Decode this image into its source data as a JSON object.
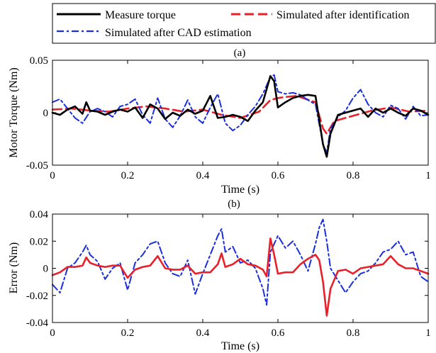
{
  "legend": {
    "entries": [
      {
        "label": "Measure torque",
        "color": "#000000",
        "style": "solid"
      },
      {
        "label": "Simulated after identification",
        "color": "#e8202a",
        "style": "dashed"
      },
      {
        "label": "Simulated after CAD estimation",
        "color": "#1a2ee0",
        "style": "dashdot"
      }
    ]
  },
  "chart_data": [
    {
      "type": "line",
      "panel_label": "(a)",
      "xlabel": "Time (s)",
      "ylabel": "Motor Torque (Nm)",
      "xlim": [
        0,
        1
      ],
      "ylim": [
        -0.05,
        0.05
      ],
      "xticks": [
        0,
        0.2,
        0.4,
        0.6,
        0.8,
        1
      ],
      "xtick_labels": [
        "0",
        "0.2",
        "0.4",
        "0.6",
        "0.8",
        "1"
      ],
      "yticks": [
        -0.05,
        0,
        0.05
      ],
      "ytick_labels": [
        "-0.05",
        "0",
        "0.05"
      ],
      "grid": false,
      "series": [
        {
          "name": "Simulated after identification",
          "color": "#e8202a",
          "style": "dashed",
          "width": 2.6,
          "x": [
            0,
            0.05,
            0.1,
            0.15,
            0.2,
            0.25,
            0.3,
            0.35,
            0.4,
            0.45,
            0.5,
            0.55,
            0.58,
            0.6,
            0.62,
            0.65,
            0.7,
            0.72,
            0.73,
            0.75,
            0.8,
            0.85,
            0.9,
            0.95,
            1.0
          ],
          "y": [
            0.003,
            0.004,
            0.002,
            0.001,
            0.004,
            0.006,
            0.004,
            0.001,
            0.003,
            -0.002,
            -0.005,
            0.001,
            0.012,
            0.014,
            0.015,
            0.016,
            0.01,
            -0.015,
            -0.02,
            -0.008,
            -0.003,
            0.002,
            0.005,
            0.001,
            0.002
          ]
        },
        {
          "name": "Simulated after CAD estimation",
          "color": "#1a2ee0",
          "style": "dashdot",
          "width": 2.0,
          "x": [
            0,
            0.02,
            0.04,
            0.06,
            0.08,
            0.1,
            0.12,
            0.14,
            0.16,
            0.18,
            0.2,
            0.22,
            0.24,
            0.26,
            0.28,
            0.3,
            0.32,
            0.34,
            0.36,
            0.38,
            0.4,
            0.42,
            0.44,
            0.46,
            0.48,
            0.5,
            0.52,
            0.54,
            0.56,
            0.58,
            0.59,
            0.6,
            0.62,
            0.64,
            0.66,
            0.68,
            0.7,
            0.72,
            0.73,
            0.74,
            0.76,
            0.78,
            0.8,
            0.82,
            0.84,
            0.86,
            0.88,
            0.9,
            0.92,
            0.94,
            0.96,
            0.98,
            1.0
          ],
          "y": [
            0.01,
            0.013,
            0.004,
            -0.005,
            -0.01,
            0.001,
            0.004,
            0.001,
            -0.004,
            0.006,
            0.008,
            0.013,
            -0.002,
            -0.01,
            0.014,
            -0.006,
            -0.014,
            -0.003,
            0.012,
            -0.004,
            -0.01,
            0.005,
            0.018,
            -0.01,
            -0.017,
            -0.012,
            -0.002,
            0.006,
            0.018,
            0.034,
            0.036,
            0.02,
            0.018,
            0.019,
            0.017,
            0.012,
            0.008,
            -0.03,
            -0.038,
            -0.015,
            -0.004,
            0.002,
            0.014,
            0.022,
            0.008,
            0.0,
            -0.004,
            0.007,
            0.004,
            -0.006,
            0.006,
            -0.003,
            -0.002
          ]
        },
        {
          "name": "Measure torque",
          "color": "#000000",
          "style": "solid",
          "width": 2.6,
          "x": [
            0,
            0.02,
            0.04,
            0.06,
            0.08,
            0.09,
            0.1,
            0.12,
            0.14,
            0.16,
            0.18,
            0.2,
            0.22,
            0.24,
            0.26,
            0.28,
            0.3,
            0.32,
            0.34,
            0.36,
            0.38,
            0.4,
            0.42,
            0.44,
            0.46,
            0.48,
            0.5,
            0.52,
            0.54,
            0.56,
            0.58,
            0.59,
            0.6,
            0.62,
            0.64,
            0.66,
            0.68,
            0.7,
            0.72,
            0.73,
            0.74,
            0.76,
            0.78,
            0.8,
            0.82,
            0.84,
            0.86,
            0.88,
            0.9,
            0.92,
            0.94,
            0.96,
            0.98,
            1.0
          ],
          "y": [
            0.0,
            -0.002,
            0.003,
            0.006,
            -0.001,
            0.01,
            0.002,
            0.001,
            -0.002,
            0.001,
            0.003,
            0.001,
            0.005,
            -0.005,
            0.008,
            0.004,
            -0.006,
            0.0,
            -0.003,
            0.003,
            -0.001,
            0.002,
            0.016,
            -0.005,
            -0.004,
            -0.002,
            -0.004,
            -0.008,
            0.002,
            0.01,
            0.035,
            0.03,
            0.005,
            0.01,
            0.014,
            0.016,
            0.017,
            0.016,
            -0.03,
            -0.042,
            -0.02,
            -0.002,
            0.0,
            0.002,
            0.004,
            -0.004,
            0.004,
            0.0,
            0.004,
            0.0,
            -0.003,
            0.004,
            0.002,
            -0.002
          ]
        }
      ]
    },
    {
      "type": "line",
      "panel_label": "(b)",
      "xlabel": "Time (s)",
      "ylabel": "Error (Nm)",
      "xlim": [
        0,
        1
      ],
      "ylim": [
        -0.04,
        0.04
      ],
      "xticks": [
        0,
        0.2,
        0.4,
        0.6,
        0.8,
        1
      ],
      "xtick_labels": [
        "0",
        "0.2",
        "0.4",
        "0.6",
        "0.8",
        "1"
      ],
      "yticks": [
        -0.04,
        -0.02,
        0,
        0.02,
        0.04
      ],
      "ytick_labels": [
        "-0.04",
        "-0.02",
        "0",
        "0.02",
        "0.04"
      ],
      "grid": false,
      "series": [
        {
          "name": "Simulated after CAD estimation",
          "color": "#1a2ee0",
          "style": "dashdot",
          "width": 2.0,
          "x": [
            0,
            0.02,
            0.04,
            0.06,
            0.08,
            0.09,
            0.1,
            0.12,
            0.14,
            0.16,
            0.18,
            0.2,
            0.22,
            0.24,
            0.26,
            0.28,
            0.3,
            0.32,
            0.34,
            0.36,
            0.38,
            0.4,
            0.42,
            0.44,
            0.45,
            0.46,
            0.48,
            0.5,
            0.52,
            0.54,
            0.56,
            0.57,
            0.58,
            0.6,
            0.62,
            0.64,
            0.66,
            0.68,
            0.7,
            0.71,
            0.72,
            0.73,
            0.74,
            0.76,
            0.78,
            0.8,
            0.82,
            0.84,
            0.86,
            0.88,
            0.9,
            0.92,
            0.94,
            0.96,
            0.98,
            1.0
          ],
          "y": [
            -0.012,
            -0.018,
            0.0,
            0.004,
            0.012,
            0.017,
            0.01,
            0.005,
            -0.008,
            0.0,
            0.004,
            -0.016,
            0.004,
            0.01,
            0.018,
            0.02,
            0.004,
            -0.004,
            -0.006,
            0.006,
            -0.019,
            -0.004,
            0.01,
            0.024,
            0.029,
            0.012,
            0.016,
            0.004,
            0.006,
            0.0,
            -0.015,
            -0.027,
            0.012,
            0.024,
            0.015,
            0.02,
            0.01,
            -0.002,
            0.018,
            0.03,
            0.036,
            0.02,
            0.0,
            -0.009,
            -0.018,
            -0.01,
            -0.004,
            -0.002,
            0.004,
            0.012,
            0.014,
            0.02,
            0.01,
            0.012,
            -0.006,
            -0.01
          ]
        },
        {
          "name": "Simulated after identification",
          "color": "#e8202a",
          "style": "solid",
          "width": 2.6,
          "x": [
            0,
            0.02,
            0.04,
            0.06,
            0.08,
            0.09,
            0.1,
            0.12,
            0.14,
            0.16,
            0.18,
            0.2,
            0.22,
            0.24,
            0.26,
            0.28,
            0.3,
            0.32,
            0.34,
            0.36,
            0.38,
            0.4,
            0.42,
            0.44,
            0.45,
            0.46,
            0.48,
            0.5,
            0.52,
            0.54,
            0.56,
            0.57,
            0.58,
            0.59,
            0.6,
            0.62,
            0.64,
            0.66,
            0.68,
            0.7,
            0.71,
            0.72,
            0.73,
            0.74,
            0.76,
            0.78,
            0.8,
            0.82,
            0.84,
            0.86,
            0.88,
            0.9,
            0.92,
            0.94,
            0.96,
            0.98,
            1.0
          ],
          "y": [
            -0.005,
            -0.003,
            0.001,
            0.001,
            0.002,
            0.008,
            0.004,
            0.002,
            0.001,
            0.002,
            0.002,
            -0.007,
            -0.001,
            0.001,
            0.002,
            0.009,
            0.0,
            -0.001,
            -0.001,
            0.002,
            -0.004,
            -0.003,
            -0.003,
            0.003,
            0.011,
            0.001,
            0.003,
            0.007,
            0.003,
            0.002,
            -0.001,
            -0.006,
            0.022,
            0.01,
            -0.004,
            -0.003,
            -0.003,
            0.003,
            0.007,
            0.01,
            0.006,
            -0.01,
            -0.035,
            -0.015,
            -0.002,
            -0.001,
            -0.004,
            0.0,
            0.001,
            0.002,
            0.003,
            0.009,
            0.003,
            0.0,
            0.0,
            -0.002,
            -0.004
          ]
        }
      ]
    }
  ]
}
